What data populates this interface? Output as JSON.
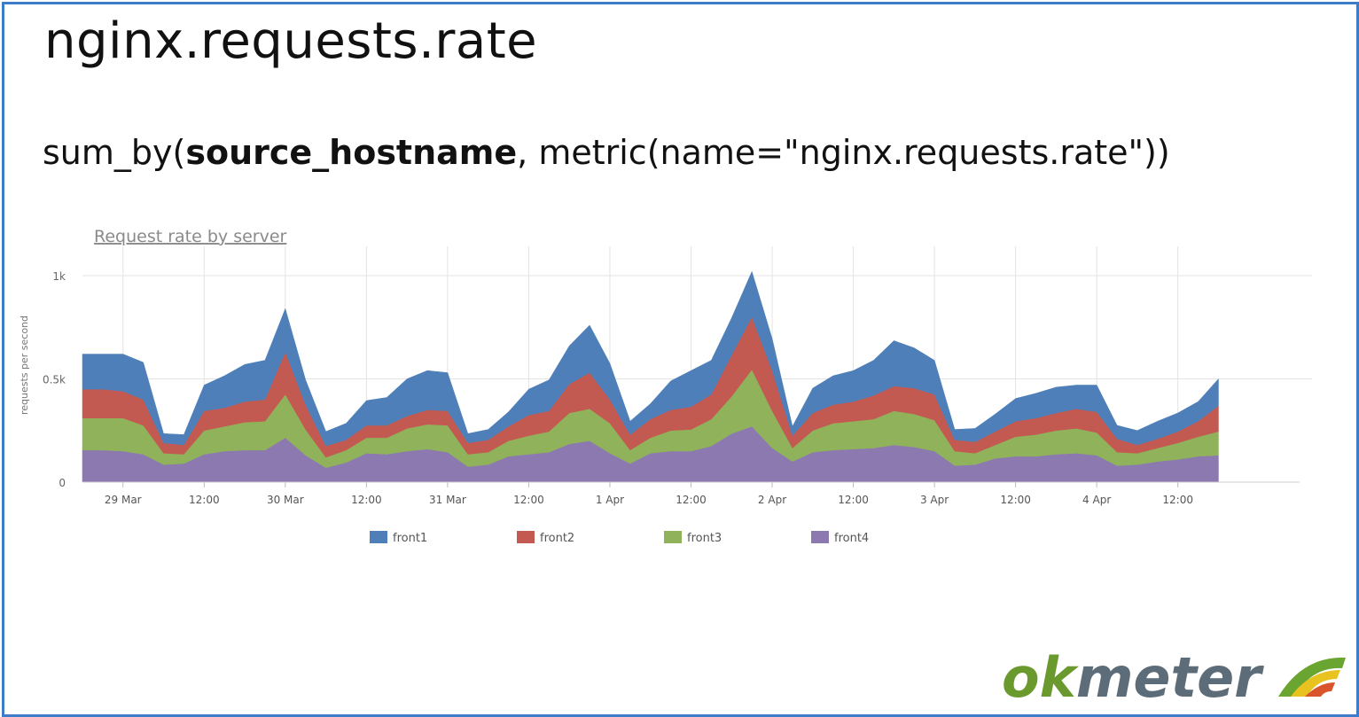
{
  "slide": {
    "title": "nginx.requests.rate",
    "query_prefix": "sum_by(",
    "query_bold": "source_hostname",
    "query_suffix": ", metric(name=\"nginx.requests.rate\"))"
  },
  "logo": {
    "text_ok": "ok",
    "text_meter": "meter",
    "color_ok": "#6a9a2e",
    "color_meter": "#5c6c78",
    "icon": "okmeter-gauge-icon"
  },
  "chart_data": {
    "type": "area",
    "stacked": true,
    "title": "Request rate by server",
    "ylabel": "requests per second",
    "xlabel": "",
    "ylim": [
      0,
      1000
    ],
    "y_ticks": [
      {
        "value": 0,
        "label": "0"
      },
      {
        "value": 500,
        "label": "0.5k"
      },
      {
        "value": 1000,
        "label": "1k"
      }
    ],
    "x_range_hours": [
      0,
      180
    ],
    "x_ticks": [
      {
        "hour": 6,
        "label": "29 Mar"
      },
      {
        "hour": 18,
        "label": "12:00"
      },
      {
        "hour": 30,
        "label": "30 Mar"
      },
      {
        "hour": 42,
        "label": "12:00"
      },
      {
        "hour": 54,
        "label": "31 Mar"
      },
      {
        "hour": 66,
        "label": "12:00"
      },
      {
        "hour": 78,
        "label": "1 Apr"
      },
      {
        "hour": 90,
        "label": "12:00"
      },
      {
        "hour": 102,
        "label": "2 Apr"
      },
      {
        "hour": 114,
        "label": "12:00"
      },
      {
        "hour": 126,
        "label": "3 Apr"
      },
      {
        "hour": 138,
        "label": "12:00"
      },
      {
        "hour": 150,
        "label": "4 Apr"
      },
      {
        "hour": 162,
        "label": "12:00"
      }
    ],
    "grid": true,
    "legend_position": "bottom",
    "x": [
      0,
      3,
      6,
      9,
      12,
      15,
      18,
      21,
      24,
      27,
      30,
      33,
      36,
      39,
      42,
      45,
      48,
      51,
      54,
      57,
      60,
      63,
      66,
      69,
      72,
      75,
      78,
      81,
      84,
      87,
      90,
      93,
      96,
      99,
      102,
      105,
      108,
      111,
      114,
      117,
      120,
      123,
      126,
      129,
      132,
      135,
      138,
      141,
      144,
      147,
      150,
      153,
      156,
      159,
      162,
      165,
      168
    ],
    "series": [
      {
        "name": "front4",
        "color": "#8c79b0",
        "values": [
          155,
          155,
          150,
          135,
          85,
          90,
          135,
          150,
          155,
          155,
          215,
          130,
          70,
          95,
          140,
          135,
          150,
          160,
          145,
          75,
          85,
          125,
          135,
          145,
          185,
          200,
          140,
          90,
          140,
          150,
          150,
          175,
          235,
          270,
          165,
          100,
          145,
          155,
          160,
          165,
          180,
          170,
          150,
          80,
          85,
          115,
          125,
          125,
          135,
          140,
          130,
          80,
          85,
          100,
          110,
          125,
          130
        ]
      },
      {
        "name": "front3",
        "color": "#8fb25a",
        "values": [
          155,
          155,
          160,
          140,
          55,
          45,
          115,
          120,
          135,
          140,
          210,
          125,
          50,
          60,
          75,
          80,
          110,
          120,
          130,
          60,
          60,
          75,
          90,
          100,
          150,
          155,
          145,
          65,
          75,
          100,
          105,
          130,
          180,
          275,
          180,
          65,
          105,
          130,
          135,
          140,
          165,
          160,
          150,
          70,
          55,
          65,
          95,
          105,
          115,
          120,
          110,
          65,
          55,
          65,
          80,
          95,
          115
        ]
      },
      {
        "name": "front2",
        "color": "#c35a52",
        "values": [
          140,
          140,
          130,
          125,
          50,
          45,
          95,
          90,
          100,
          105,
          205,
          120,
          55,
          50,
          60,
          60,
          60,
          70,
          70,
          55,
          60,
          70,
          100,
          100,
          140,
          175,
          115,
          75,
          90,
          100,
          110,
          120,
          200,
          255,
          195,
          60,
          85,
          90,
          95,
          115,
          120,
          125,
          125,
          55,
          55,
          65,
          75,
          80,
          85,
          95,
          100,
          65,
          40,
          45,
          55,
          75,
          125
        ]
      },
      {
        "name": "front1",
        "color": "#4e7fb8",
        "values": [
          170,
          170,
          180,
          180,
          45,
          50,
          125,
          155,
          180,
          190,
          210,
          120,
          70,
          80,
          120,
          135,
          180,
          190,
          185,
          45,
          50,
          70,
          125,
          150,
          185,
          230,
          175,
          65,
          75,
          140,
          175,
          165,
          180,
          220,
          155,
          45,
          120,
          140,
          150,
          170,
          220,
          195,
          165,
          50,
          65,
          85,
          110,
          120,
          125,
          115,
          130,
          65,
          70,
          85,
          90,
          95,
          130
        ]
      }
    ]
  }
}
